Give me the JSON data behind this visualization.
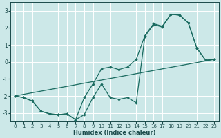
{
  "background_color": "#cce8e8",
  "grid_color": "#b8d8d8",
  "line_color": "#1a6b60",
  "xlabel": "Humidex (Indice chaleur)",
  "ylim": [
    -3.5,
    3.5
  ],
  "xlim": [
    -0.5,
    23.5
  ],
  "yticks": [
    -3,
    -2,
    -1,
    0,
    1,
    2,
    3
  ],
  "xticks": [
    0,
    1,
    2,
    3,
    4,
    5,
    6,
    7,
    8,
    9,
    10,
    11,
    12,
    13,
    14,
    15,
    16,
    17,
    18,
    19,
    20,
    21,
    22,
    23
  ],
  "line1_x": [
    0,
    1,
    2,
    3,
    4,
    5,
    6,
    7,
    8,
    9,
    10,
    11,
    12,
    13,
    14,
    15,
    16,
    17,
    18,
    19,
    20,
    21,
    22,
    23
  ],
  "line1_y": [
    -2.0,
    -2.1,
    -2.3,
    -2.9,
    -3.05,
    -3.1,
    -3.05,
    -3.4,
    -2.1,
    -1.3,
    -0.4,
    -0.3,
    -0.45,
    -0.3,
    0.15,
    1.55,
    2.25,
    2.1,
    2.8,
    2.75,
    2.3,
    0.8,
    0.1,
    0.15
  ],
  "line2_x": [
    0,
    1,
    2,
    3,
    4,
    5,
    6,
    7,
    8,
    9,
    10,
    11,
    12,
    13,
    14,
    15,
    16,
    17,
    18,
    19,
    20,
    21,
    22,
    23
  ],
  "line2_y": [
    -2.0,
    -2.1,
    -2.3,
    -2.9,
    -3.05,
    -3.1,
    -3.05,
    -3.4,
    -3.1,
    -2.1,
    -1.3,
    -2.1,
    -2.2,
    -2.1,
    -2.4,
    1.5,
    2.2,
    2.05,
    2.8,
    2.75,
    2.3,
    0.8,
    0.1,
    0.15
  ],
  "line3_x": [
    0,
    23
  ],
  "line3_y": [
    -2.0,
    0.15
  ]
}
